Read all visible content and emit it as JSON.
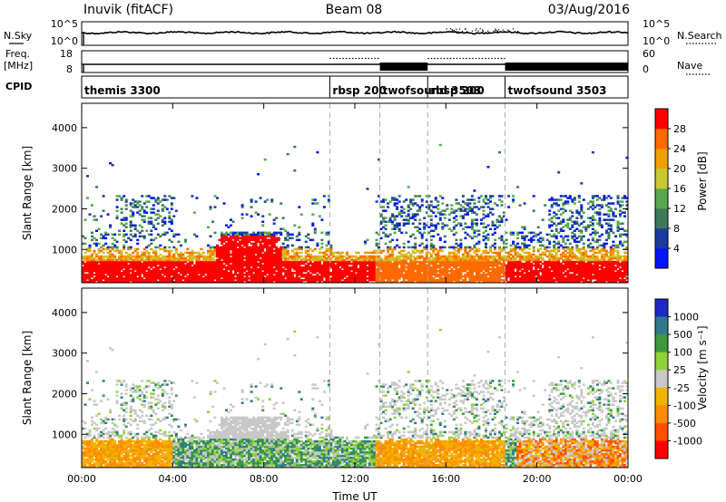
{
  "header": {
    "station": "Inuvik (fitACF)",
    "beam": "Beam 08",
    "date": "03/Aug/2016"
  },
  "panels": {
    "sky": {
      "left_label": "N.Sky",
      "right_label": "N.Search",
      "ticks_left": [
        "10^5",
        "10^0"
      ],
      "ticks_right": [
        "10^5",
        "10^0"
      ]
    },
    "freq": {
      "left_label_1": "Freq.",
      "left_label_2": "[MHz]",
      "right_label": "Nave",
      "ticks_left": [
        "18",
        "8"
      ],
      "ticks_right": [
        "60",
        "0"
      ]
    },
    "cpid": {
      "label": "CPID",
      "segments": [
        {
          "name": "themis 3300",
          "start": 0.0
        },
        {
          "name": "rbsp 200",
          "start": 10.9
        },
        {
          "name": "twofsound 3503",
          "start": 13.1
        },
        {
          "name": "rbsp 200",
          "start": 15.2
        },
        {
          "name": "twofsound 3503",
          "start": 18.6
        }
      ]
    }
  },
  "chart_data": [
    {
      "type": "heatmap",
      "name": "power",
      "ylabel": "Slant Range [km]",
      "xlim": [
        0,
        24
      ],
      "ylim": [
        180,
        4600
      ],
      "yticks": [
        1000,
        2000,
        3000,
        4000
      ],
      "colorbar": {
        "label": "Power [dB]",
        "ticks": [
          "4",
          "8",
          "12",
          "16",
          "20",
          "24",
          "28"
        ],
        "colors": [
          "#0014ff",
          "#1a3ca0",
          "#3c7a5a",
          "#55a84e",
          "#c8c832",
          "#f0a000",
          "#ff6a00",
          "#ff0000"
        ]
      }
    },
    {
      "type": "heatmap",
      "name": "velocity",
      "ylabel": "Slant Range [km]",
      "xlabel": "Time UT",
      "xlim": [
        0,
        24
      ],
      "ylim": [
        180,
        4600
      ],
      "yticks": [
        1000,
        2000,
        3000,
        4000
      ],
      "xticks": [
        "00:00",
        "04:00",
        "08:00",
        "12:00",
        "16:00",
        "20:00",
        "00:00"
      ],
      "colorbar": {
        "label": "Velocity [m s⁻¹]",
        "ticks": [
          "1000",
          "500",
          "100",
          "25",
          "-25",
          "-100",
          "-500",
          "-1000"
        ],
        "colors": [
          "#1e28c8",
          "#2e7a8a",
          "#3c9a3c",
          "#8fd23a",
          "#c8c8c8",
          "#f0b400",
          "#ff8c00",
          "#ff5000",
          "#ff0000"
        ]
      }
    }
  ]
}
